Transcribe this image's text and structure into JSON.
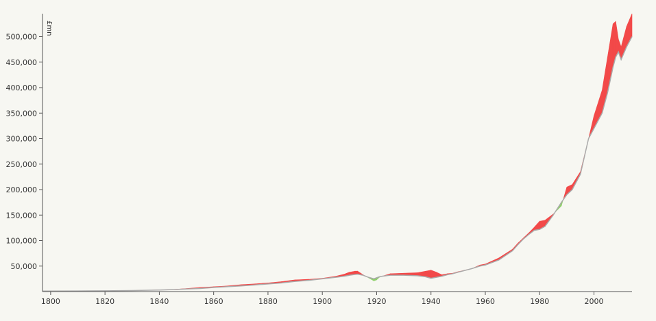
{
  "chart_data": {
    "type": "area",
    "title": "",
    "xlabel": "",
    "ylabel": "£mn",
    "xlim": [
      1797,
      2014
    ],
    "ylim": [
      0,
      545000
    ],
    "grid": false,
    "x_ticks": [
      "1800",
      "1820",
      "1840",
      "1860",
      "1880",
      "1900",
      "1920",
      "1940",
      "1960",
      "1980",
      "2000"
    ],
    "y_ticks": [
      "50,000",
      "100,000",
      "150,000",
      "200,000",
      "250,000",
      "300,000",
      "350,000",
      "400,000",
      "450,000",
      "500,000"
    ],
    "fill_colors": {
      "surplus": "#8fd16a",
      "deficit": "#f24949"
    },
    "line_color": "#aaaaaa",
    "series": [
      {
        "name": "",
        "x": [
          1797,
          1800,
          1810,
          1820,
          1830,
          1840,
          1845,
          1850,
          1855,
          1860,
          1865,
          1870,
          1875,
          1880,
          1885,
          1890,
          1895,
          1900,
          1905,
          1908,
          1910,
          1912,
          1913,
          1915,
          1917,
          1919,
          1920,
          1921,
          1922,
          1925,
          1930,
          1935,
          1938,
          1940,
          1942,
          1944,
          1946,
          1948,
          1950,
          1955,
          1958,
          1960,
          1965,
          1970,
          1972,
          1974,
          1976,
          1978,
          1980,
          1982,
          1985,
          1988,
          1990,
          1992,
          1995,
          1998,
          2000,
          2003,
          2005,
          2007,
          2008,
          2009,
          2010,
          2012,
          2014
        ],
        "values": [
          1000,
          1000,
          1200,
          1500,
          2000,
          3000,
          3800,
          5000,
          6000,
          8000,
          9500,
          11000,
          13000,
          15000,
          17000,
          20000,
          22000,
          25000,
          28000,
          30000,
          32000,
          33500,
          34000,
          32000,
          28000,
          25000,
          27000,
          29000,
          30000,
          32000,
          32000,
          31000,
          29000,
          26000,
          28000,
          30000,
          33000,
          35000,
          38000,
          45000,
          50000,
          52000,
          62000,
          80000,
          92000,
          103000,
          112000,
          120000,
          122000,
          128000,
          150000,
          175000,
          190000,
          200000,
          230000,
          300000,
          320000,
          350000,
          390000,
          440000,
          460000,
          470000,
          455000,
          480000,
          500000
        ]
      },
      {
        "name": "",
        "x": [
          1797,
          1800,
          1810,
          1820,
          1830,
          1840,
          1845,
          1850,
          1855,
          1860,
          1865,
          1870,
          1875,
          1880,
          1885,
          1890,
          1895,
          1900,
          1905,
          1908,
          1910,
          1912,
          1913,
          1915,
          1917,
          1919,
          1920,
          1921,
          1922,
          1925,
          1930,
          1935,
          1938,
          1940,
          1942,
          1944,
          1946,
          1948,
          1950,
          1955,
          1958,
          1960,
          1965,
          1970,
          1972,
          1974,
          1976,
          1978,
          1980,
          1982,
          1985,
          1988,
          1990,
          1992,
          1995,
          1998,
          2000,
          2003,
          2005,
          2007,
          2008,
          2009,
          2010,
          2012,
          2014
        ],
        "values": [
          1000,
          1000,
          1200,
          1500,
          2200,
          3200,
          4200,
          6000,
          8000,
          9500,
          11000,
          13500,
          15000,
          17000,
          19500,
          23000,
          24000,
          26000,
          30000,
          34000,
          38000,
          40000,
          40000,
          33000,
          27000,
          21000,
          23000,
          28000,
          30000,
          35000,
          36000,
          37000,
          40000,
          42000,
          38000,
          33000,
          35000,
          36000,
          39000,
          45000,
          52000,
          54000,
          66000,
          83000,
          95000,
          105000,
          115000,
          126000,
          138000,
          140000,
          152000,
          168000,
          205000,
          210000,
          235000,
          300000,
          345000,
          395000,
          460000,
          525000,
          530000,
          495000,
          480000,
          520000,
          545000
        ]
      }
    ]
  }
}
